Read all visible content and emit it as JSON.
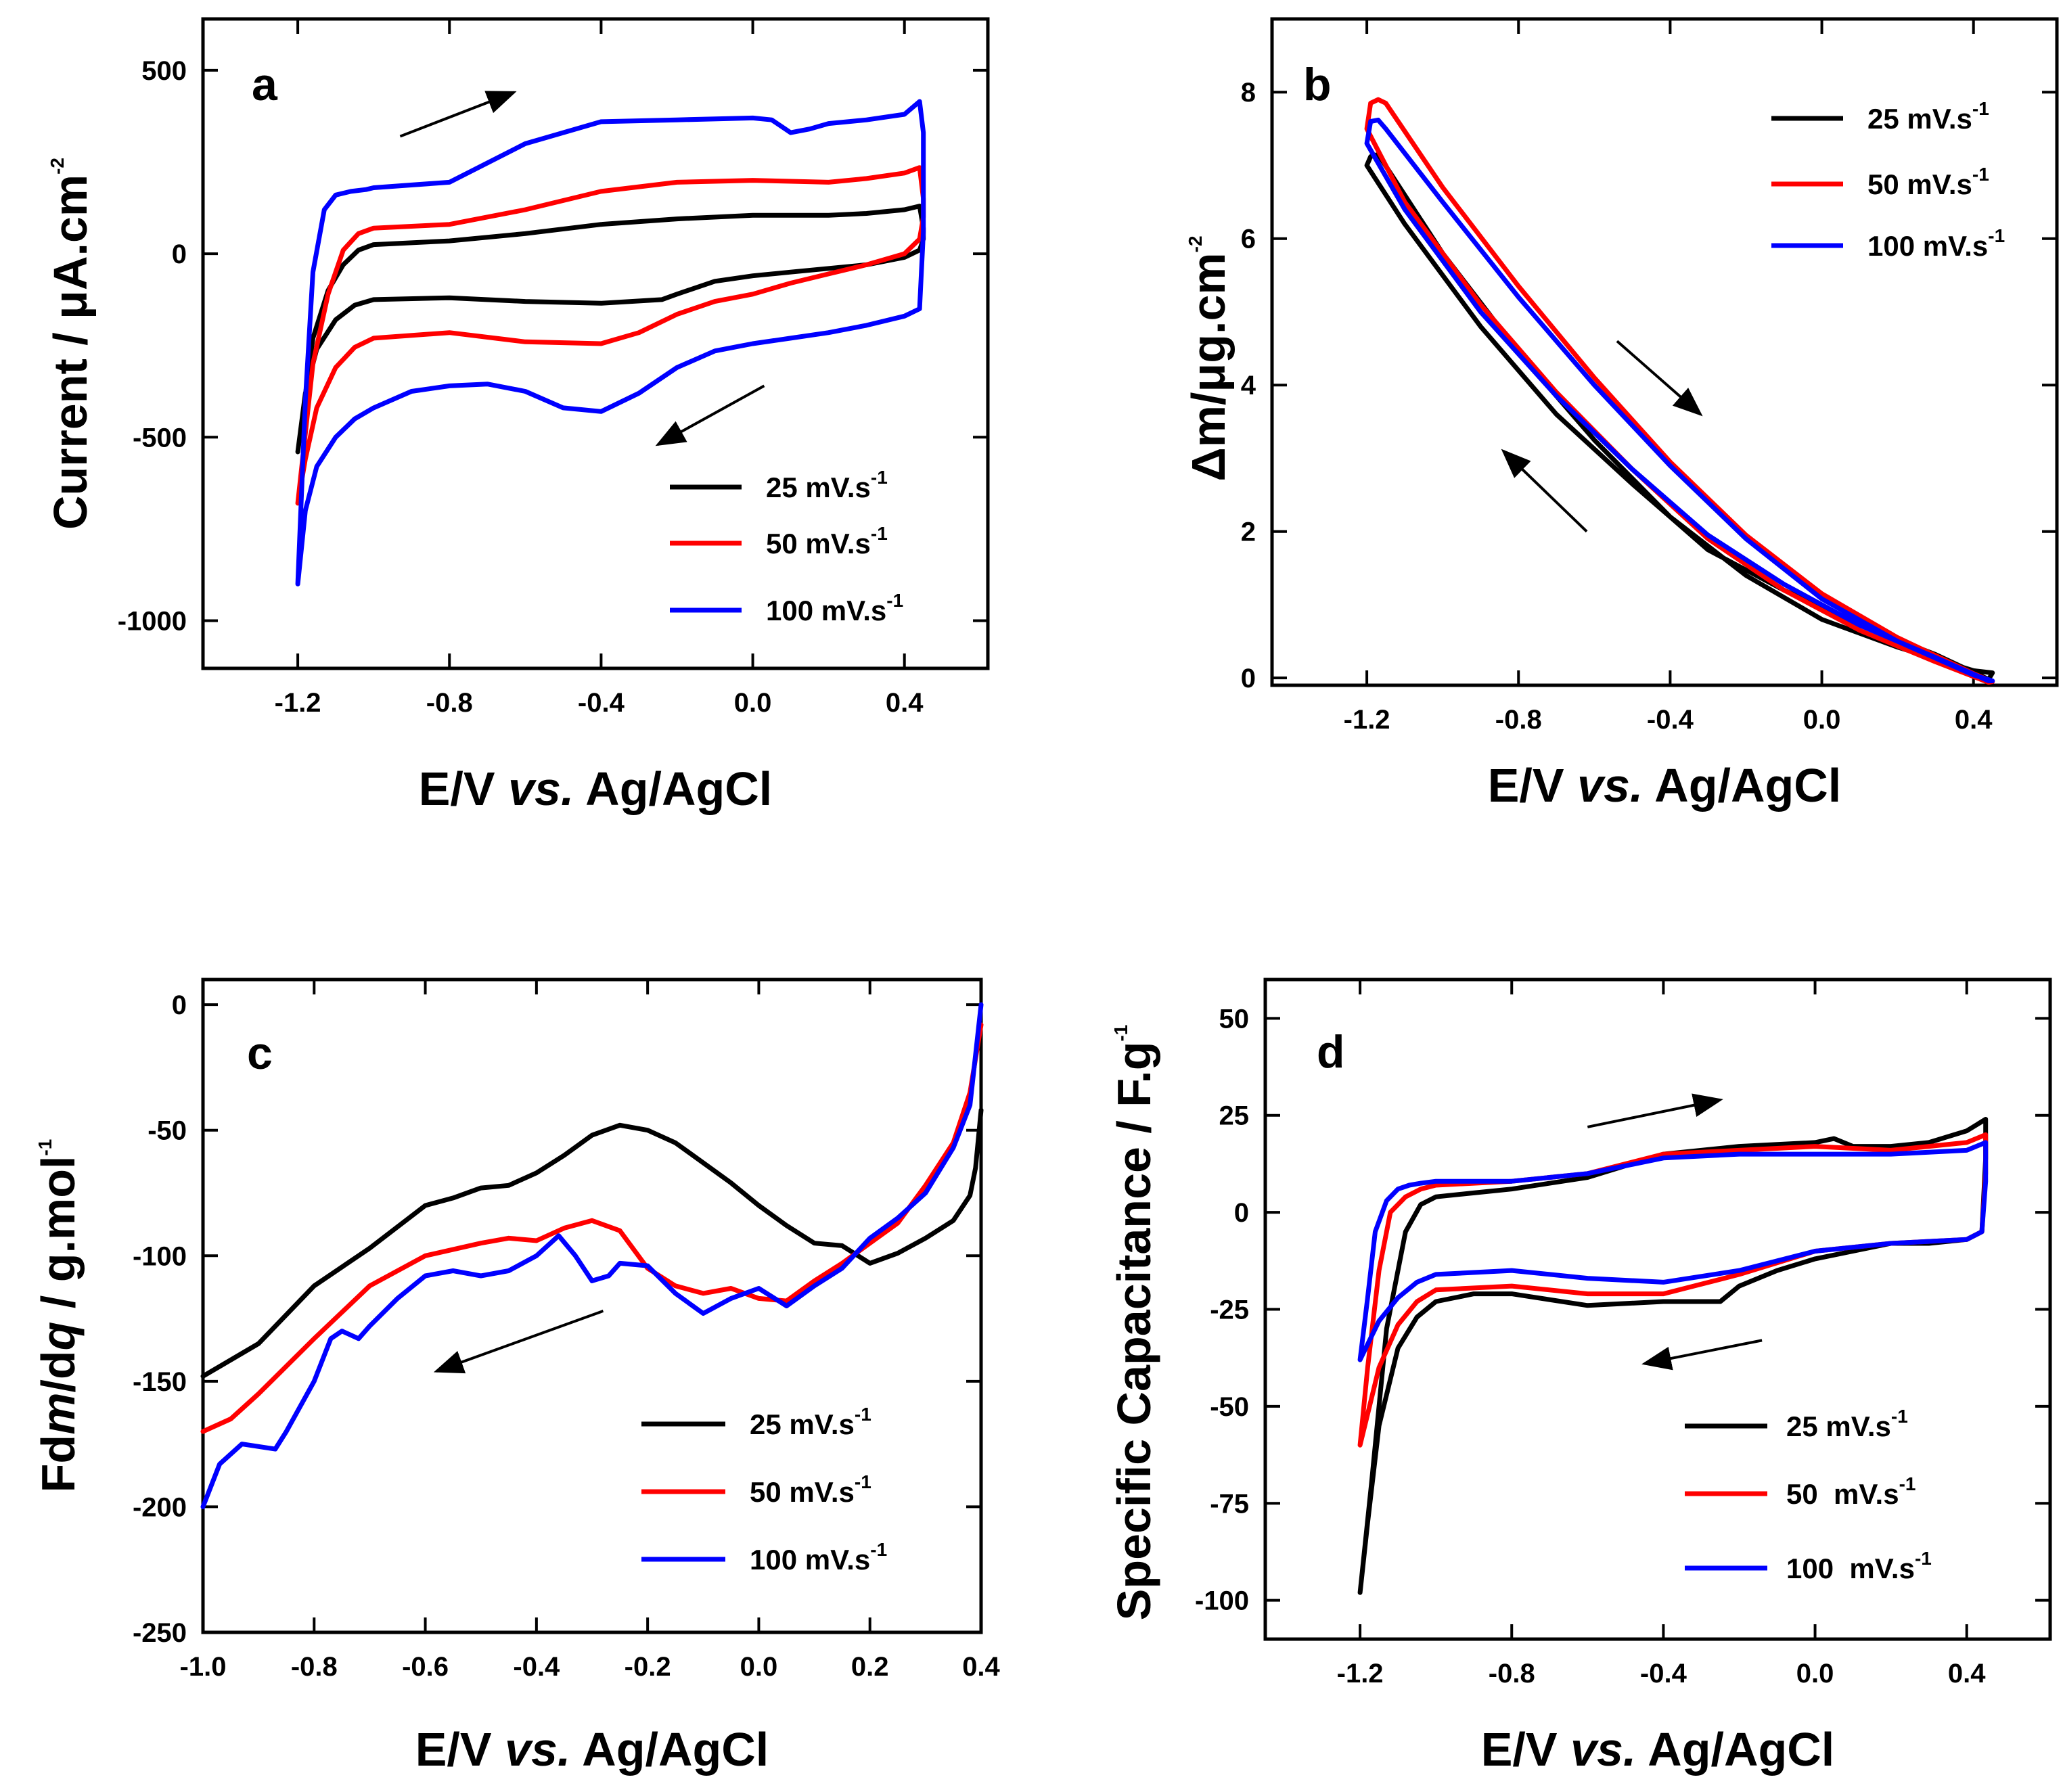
{
  "chart_data": [
    {
      "id": "a",
      "type": "line",
      "panel_label": "a",
      "xlabel": "E/V vs. Ag/AgCl",
      "ylabel": "Current / μA.cm-2",
      "xlim": [
        -1.45,
        0.62
      ],
      "ylim": [
        -1130,
        640
      ],
      "xticks": [
        -1.2,
        -0.8,
        -0.4,
        0.0,
        0.4
      ],
      "xtick_labels": [
        "-1.2",
        "-0.8",
        "-0.4",
        "0.0",
        "0.4"
      ],
      "yticks": [
        500,
        0,
        -500,
        -1000
      ],
      "ytick_labels": [
        "500",
        "0",
        "-500",
        "-1000"
      ],
      "legend_position": "bottom-right",
      "arrows": [
        {
          "from": [
            -0.93,
            320
          ],
          "to": [
            -0.63,
            440
          ]
        },
        {
          "from": [
            0.03,
            -360
          ],
          "to": [
            -0.25,
            -520
          ]
        }
      ],
      "series": [
        {
          "name": "25 mV.s-1",
          "color": "#000000",
          "x": [
            -1.2,
            -1.16,
            -1.12,
            -1.08,
            -1.04,
            -1.0,
            -0.8,
            -0.6,
            -0.4,
            -0.2,
            0.0,
            0.2,
            0.3,
            0.4,
            0.44,
            0.45,
            0.45,
            0.44,
            0.4,
            0.3,
            0.2,
            0.1,
            0.0,
            -0.1,
            -0.2,
            -0.24,
            -0.4,
            -0.6,
            -0.8,
            -1.0,
            -1.05,
            -1.1,
            -1.15,
            -1.18,
            -1.2
          ],
          "y": [
            -540,
            -230,
            -100,
            -30,
            10,
            25,
            35,
            55,
            80,
            95,
            105,
            105,
            110,
            120,
            130,
            70,
            40,
            10,
            -10,
            -30,
            -40,
            -50,
            -60,
            -75,
            -110,
            -125,
            -135,
            -130,
            -120,
            -125,
            -140,
            -180,
            -260,
            -380,
            -540
          ]
        },
        {
          "name": "50 mV.s-1",
          "color": "#ff0000",
          "x": [
            -1.2,
            -1.16,
            -1.12,
            -1.08,
            -1.04,
            -1.0,
            -0.8,
            -0.6,
            -0.4,
            -0.2,
            0.0,
            0.2,
            0.3,
            0.4,
            0.44,
            0.45,
            0.45,
            0.44,
            0.4,
            0.3,
            0.2,
            0.1,
            0.0,
            -0.1,
            -0.2,
            -0.3,
            -0.4,
            -0.6,
            -0.8,
            -1.0,
            -1.05,
            -1.1,
            -1.15,
            -1.18,
            -1.2
          ],
          "y": [
            -680,
            -300,
            -110,
            10,
            55,
            70,
            80,
            120,
            170,
            195,
            200,
            195,
            205,
            220,
            235,
            150,
            100,
            40,
            0,
            -30,
            -55,
            -80,
            -110,
            -130,
            -165,
            -215,
            -245,
            -240,
            -215,
            -230,
            -255,
            -310,
            -420,
            -560,
            -680
          ]
        },
        {
          "name": "100 mV.s-1",
          "color": "#0000ff",
          "x": [
            -1.2,
            -1.18,
            -1.16,
            -1.13,
            -1.1,
            -1.06,
            -1.02,
            -1.0,
            -0.8,
            -0.6,
            -0.4,
            -0.2,
            0.0,
            0.05,
            0.1,
            0.15,
            0.2,
            0.3,
            0.4,
            0.44,
            0.45,
            0.45,
            0.44,
            0.4,
            0.3,
            0.2,
            0.1,
            0.0,
            -0.1,
            -0.2,
            -0.3,
            -0.4,
            -0.5,
            -0.6,
            -0.7,
            -0.8,
            -0.9,
            -1.0,
            -1.05,
            -1.1,
            -1.15,
            -1.18,
            -1.2
          ],
          "y": [
            -900,
            -400,
            -50,
            120,
            160,
            170,
            175,
            180,
            195,
            300,
            360,
            365,
            370,
            365,
            330,
            340,
            355,
            365,
            380,
            415,
            330,
            60,
            -150,
            -170,
            -195,
            -215,
            -230,
            -245,
            -265,
            -310,
            -380,
            -430,
            -420,
            -375,
            -355,
            -360,
            -375,
            -420,
            -450,
            -500,
            -580,
            -700,
            -900
          ]
        }
      ]
    },
    {
      "id": "b",
      "type": "line",
      "panel_label": "b",
      "xlabel": "E/V vs. Ag/AgCl",
      "ylabel": "Δm/μg.cm-2",
      "xlim": [
        -1.45,
        0.62
      ],
      "ylim": [
        -0.1,
        9.0
      ],
      "xticks": [
        -1.2,
        -0.8,
        -0.4,
        0.0,
        0.4
      ],
      "xtick_labels": [
        "-1.2",
        "-0.8",
        "-0.4",
        "0.0",
        "0.4"
      ],
      "yticks": [
        0,
        2,
        4,
        6,
        8
      ],
      "ytick_labels": [
        "0",
        "2",
        "4",
        "6",
        "8"
      ],
      "legend_position": "top-right",
      "arrows": [
        {
          "from": [
            -0.54,
            4.6
          ],
          "to": [
            -0.32,
            3.6
          ]
        },
        {
          "from": [
            -0.62,
            2.0
          ],
          "to": [
            -0.84,
            3.1
          ]
        }
      ],
      "series": [
        {
          "name": "25 mV.s-1",
          "color": "#000000",
          "x": [
            -1.2,
            -1.19,
            -1.17,
            -1.0,
            -0.8,
            -0.6,
            -0.4,
            -0.2,
            0.0,
            0.2,
            0.4,
            0.45,
            0.44,
            0.3,
            0.1,
            -0.1,
            -0.3,
            -0.5,
            -0.7,
            -0.9,
            -1.1,
            -1.2
          ],
          "y": [
            7.0,
            7.12,
            7.15,
            5.8,
            4.45,
            3.25,
            2.2,
            1.4,
            0.8,
            0.42,
            0.1,
            0.07,
            -0.02,
            0.32,
            0.72,
            1.2,
            1.75,
            2.65,
            3.6,
            4.8,
            6.2,
            7.0
          ]
        },
        {
          "name": "50 mV.s-1",
          "color": "#ff0000",
          "x": [
            -1.2,
            -1.19,
            -1.17,
            -1.15,
            -1.0,
            -0.8,
            -0.6,
            -0.4,
            -0.2,
            0.0,
            0.2,
            0.4,
            0.45,
            0.44,
            0.3,
            0.1,
            -0.1,
            -0.3,
            -0.5,
            -0.7,
            -0.9,
            -1.1,
            -1.2
          ],
          "y": [
            7.5,
            7.85,
            7.9,
            7.85,
            6.7,
            5.35,
            4.1,
            2.95,
            1.95,
            1.15,
            0.55,
            0.06,
            -0.05,
            -0.06,
            0.22,
            0.65,
            1.2,
            1.9,
            2.85,
            3.9,
            5.1,
            6.5,
            7.5
          ]
        },
        {
          "name": "100 mV.s-1",
          "color": "#0000ff",
          "x": [
            -1.2,
            -1.19,
            -1.17,
            -1.15,
            -1.0,
            -0.8,
            -0.6,
            -0.4,
            -0.2,
            0.0,
            0.2,
            0.4,
            0.45,
            0.44,
            0.3,
            0.1,
            -0.1,
            -0.3,
            -0.5,
            -0.7,
            -0.9,
            -1.1,
            -1.2
          ],
          "y": [
            7.3,
            7.6,
            7.62,
            7.5,
            6.5,
            5.2,
            4.0,
            2.9,
            1.9,
            1.08,
            0.5,
            0.04,
            -0.04,
            -0.04,
            0.28,
            0.72,
            1.28,
            1.95,
            2.85,
            3.85,
            5.0,
            6.4,
            7.3
          ]
        }
      ]
    },
    {
      "id": "c",
      "type": "line",
      "panel_label": "c",
      "xlabel": "E/V vs. Ag/AgCl",
      "ylabel": "Fdm/dq / g.mol-1",
      "xlim": [
        -1.0,
        0.4
      ],
      "ylim": [
        -250,
        10
      ],
      "xticks": [
        -1.0,
        -0.8,
        -0.6,
        -0.4,
        -0.2,
        0.0,
        0.2,
        0.4
      ],
      "xtick_labels": [
        "-1.0",
        "-0.8",
        "-0.6",
        "-0.4",
        "-0.2",
        "0.0",
        "0.2",
        "0.4"
      ],
      "yticks": [
        0,
        -50,
        -100,
        -150,
        -200,
        -250
      ],
      "ytick_labels": [
        "0",
        "-50",
        "-100",
        "-150",
        "-200",
        "-250"
      ],
      "legend_position": "bottom-right",
      "arrows": [
        {
          "from": [
            -0.28,
            -122
          ],
          "to": [
            -0.58,
            -146
          ]
        }
      ],
      "series": [
        {
          "name": "25 mV.s-1",
          "color": "#000000",
          "x": [
            -1.0,
            -0.9,
            -0.8,
            -0.7,
            -0.6,
            -0.55,
            -0.5,
            -0.45,
            -0.4,
            -0.35,
            -0.3,
            -0.25,
            -0.2,
            -0.15,
            -0.1,
            -0.05,
            0.0,
            0.05,
            0.1,
            0.15,
            0.2,
            0.25,
            0.3,
            0.35,
            0.38,
            0.39,
            0.4
          ],
          "y": [
            -148,
            -135,
            -112,
            -97,
            -80,
            -77,
            -73,
            -72,
            -67,
            -60,
            -52,
            -48,
            -50,
            -55,
            -63,
            -71,
            -80,
            -88,
            -95,
            -96,
            -103,
            -99,
            -93,
            -86,
            -76,
            -65,
            -42
          ]
        },
        {
          "name": "50 mV.s-1",
          "color": "#ff0000",
          "x": [
            -1.0,
            -0.95,
            -0.9,
            -0.8,
            -0.7,
            -0.6,
            -0.5,
            -0.45,
            -0.4,
            -0.35,
            -0.3,
            -0.25,
            -0.2,
            -0.15,
            -0.1,
            -0.05,
            0.0,
            0.05,
            0.1,
            0.15,
            0.2,
            0.25,
            0.3,
            0.35,
            0.38,
            0.4
          ],
          "y": [
            -170,
            -165,
            -155,
            -133,
            -112,
            -100,
            -95,
            -93,
            -94,
            -89,
            -86,
            -90,
            -105,
            -112,
            -115,
            -113,
            -117,
            -118,
            -110,
            -103,
            -95,
            -87,
            -72,
            -55,
            -35,
            -8
          ]
        },
        {
          "name": "100 mV.s-1",
          "color": "#0000ff",
          "x": [
            -1.0,
            -0.97,
            -0.93,
            -0.9,
            -0.87,
            -0.85,
            -0.8,
            -0.77,
            -0.75,
            -0.72,
            -0.7,
            -0.65,
            -0.6,
            -0.55,
            -0.5,
            -0.45,
            -0.4,
            -0.36,
            -0.33,
            -0.3,
            -0.27,
            -0.25,
            -0.2,
            -0.15,
            -0.1,
            -0.05,
            0.0,
            0.05,
            0.1,
            0.15,
            0.2,
            0.25,
            0.3,
            0.35,
            0.38,
            0.4
          ],
          "y": [
            -200,
            -183,
            -175,
            -176,
            -177,
            -170,
            -150,
            -133,
            -130,
            -133,
            -128,
            -117,
            -108,
            -106,
            -108,
            -106,
            -100,
            -92,
            -100,
            -110,
            -108,
            -103,
            -104,
            -115,
            -123,
            -117,
            -113,
            -120,
            -112,
            -105,
            -93,
            -85,
            -75,
            -57,
            -40,
            0
          ]
        }
      ]
    },
    {
      "id": "d",
      "type": "line",
      "panel_label": "d",
      "xlabel": "E/V vs. Ag/AgCl",
      "ylabel": "Specific Capacitance / F.g-1",
      "xlim": [
        -1.45,
        0.62
      ],
      "ylim": [
        -110,
        60
      ],
      "xticks": [
        -1.2,
        -0.8,
        -0.4,
        0.0,
        0.4
      ],
      "xtick_labels": [
        "-1.2",
        "-0.8",
        "-0.4",
        "0.0",
        "0.4"
      ],
      "yticks": [
        50,
        25,
        0,
        -25,
        -50,
        -75,
        -100
      ],
      "ytick_labels": [
        "50",
        "25",
        "0",
        "-25",
        "-50",
        "-75",
        "-100"
      ],
      "legend_position": "bottom-right",
      "arrows": [
        {
          "from": [
            -0.6,
            22
          ],
          "to": [
            -0.25,
            29
          ]
        },
        {
          "from": [
            -0.14,
            -33
          ],
          "to": [
            -0.45,
            -39
          ]
        }
      ],
      "series": [
        {
          "name": "25 mV.s-1",
          "color": "#000000",
          "x": [
            -1.2,
            -1.17,
            -1.13,
            -1.08,
            -1.04,
            -1.0,
            -0.9,
            -0.8,
            -0.6,
            -0.4,
            -0.2,
            0.0,
            0.05,
            0.1,
            0.2,
            0.3,
            0.4,
            0.45,
            0.45,
            0.44,
            0.4,
            0.3,
            0.2,
            0.1,
            0.0,
            -0.1,
            -0.2,
            -0.25,
            -0.4,
            -0.6,
            -0.8,
            -0.9,
            -1.0,
            -1.05,
            -1.1,
            -1.15,
            -1.18,
            -1.2
          ],
          "y": [
            -98,
            -70,
            -30,
            -5,
            2,
            4,
            5,
            6,
            9,
            15,
            17,
            18,
            19,
            17,
            17,
            18,
            21,
            24,
            14,
            -5,
            -7,
            -8,
            -8,
            -10,
            -12,
            -15,
            -19,
            -23,
            -23,
            -24,
            -21,
            -21,
            -23,
            -27,
            -35,
            -55,
            -80,
            -98
          ]
        },
        {
          "name": "50 mV.s-1",
          "color": "#ff0000",
          "x": [
            -1.2,
            -1.18,
            -1.15,
            -1.12,
            -1.08,
            -1.04,
            -1.0,
            -0.8,
            -0.6,
            -0.4,
            -0.2,
            0.0,
            0.2,
            0.4,
            0.45,
            0.45,
            0.44,
            0.4,
            0.2,
            0.0,
            -0.2,
            -0.4,
            -0.6,
            -0.8,
            -1.0,
            -1.05,
            -1.1,
            -1.15,
            -1.2
          ],
          "y": [
            -60,
            -40,
            -15,
            0,
            4,
            6,
            7,
            8,
            10,
            15,
            16,
            17,
            16,
            18,
            20,
            10,
            -5,
            -7,
            -8,
            -10,
            -16,
            -21,
            -21,
            -19,
            -20,
            -23,
            -29,
            -40,
            -60
          ]
        },
        {
          "name": "100 mV.s-1",
          "color": "#0000ff",
          "x": [
            -1.2,
            -1.18,
            -1.16,
            -1.13,
            -1.1,
            -1.07,
            -1.04,
            -1.0,
            -0.8,
            -0.6,
            -0.4,
            -0.2,
            0.0,
            0.2,
            0.4,
            0.45,
            0.45,
            0.44,
            0.4,
            0.2,
            0.0,
            -0.2,
            -0.4,
            -0.6,
            -0.8,
            -1.0,
            -1.05,
            -1.1,
            -1.15,
            -1.2
          ],
          "y": [
            -38,
            -22,
            -5,
            3,
            6,
            7,
            7.5,
            8,
            8,
            10,
            14,
            15,
            15,
            15,
            16,
            18,
            8,
            -5,
            -7,
            -8,
            -10,
            -15,
            -18,
            -17,
            -15,
            -16,
            -18,
            -22,
            -28,
            -38
          ]
        }
      ]
    }
  ]
}
